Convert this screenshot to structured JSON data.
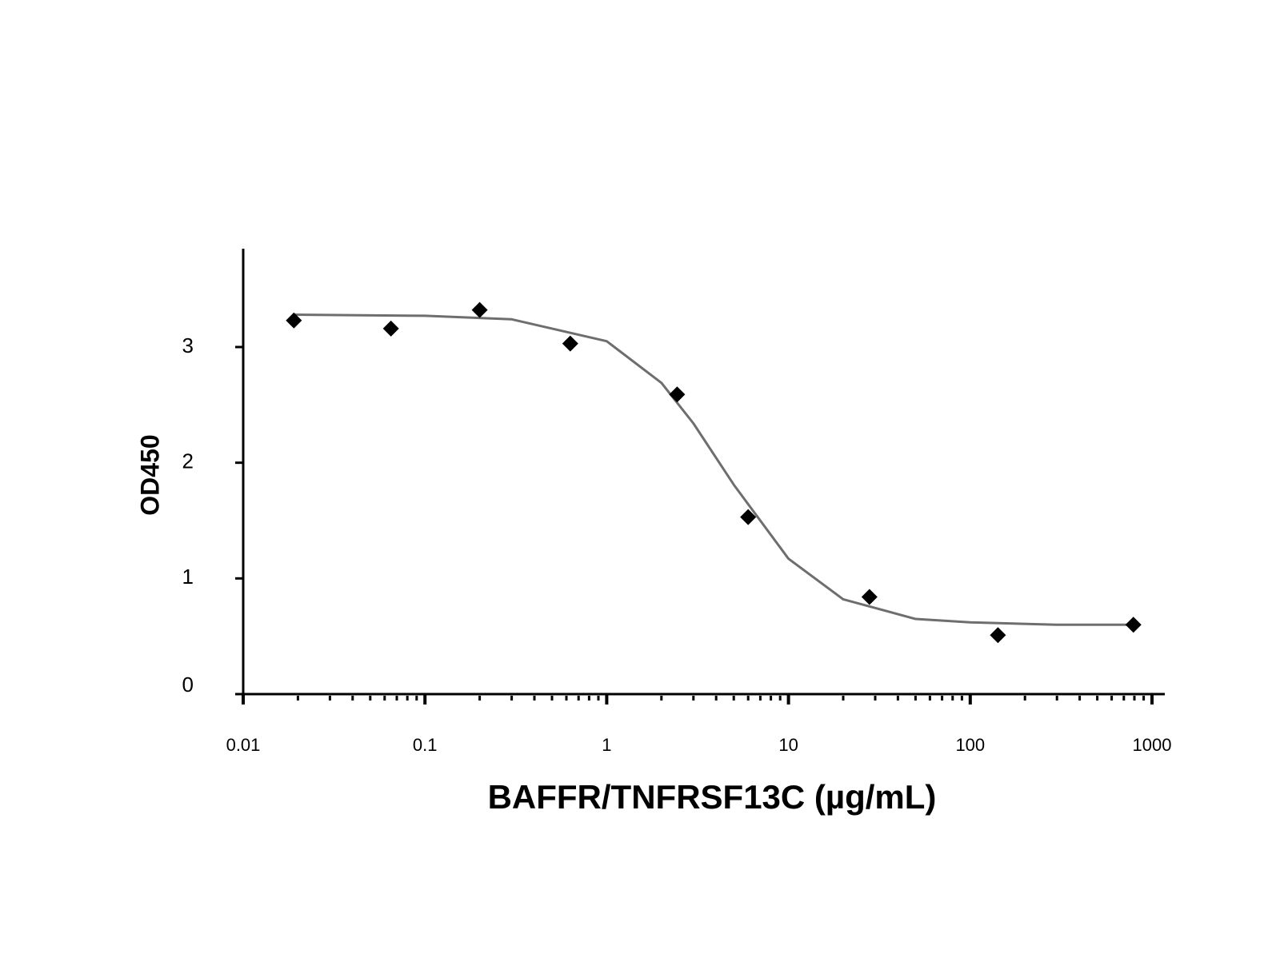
{
  "chart_data": {
    "type": "scatter",
    "xlabel": "BAFFR/TNFRSF13C (µg/mL)",
    "ylabel": "OD450",
    "xscale": "log",
    "xlim": [
      0.01,
      1000
    ],
    "xticks": [
      0.01,
      0.1,
      1,
      10,
      100,
      1000
    ],
    "ylim": [
      0,
      3.85
    ],
    "yticks": [
      0,
      1,
      2,
      3
    ],
    "series": [
      {
        "type": "scatter",
        "color": "#000000",
        "x": [
          0.019,
          0.065,
          0.2,
          0.63,
          2.44,
          6.0,
          27.9,
          142,
          790
        ],
        "values": [
          3.23,
          3.16,
          3.32,
          3.03,
          2.59,
          1.53,
          0.84,
          0.51,
          0.6
        ]
      },
      {
        "type": "line",
        "color": "#6e6e6e",
        "x": [
          0.019,
          0.1,
          0.3,
          1,
          2,
          3,
          5,
          10,
          20,
          50,
          100,
          300,
          790
        ],
        "values": [
          3.28,
          3.27,
          3.24,
          3.05,
          2.69,
          2.34,
          1.81,
          1.17,
          0.82,
          0.65,
          0.62,
          0.6,
          0.6
        ]
      }
    ]
  }
}
